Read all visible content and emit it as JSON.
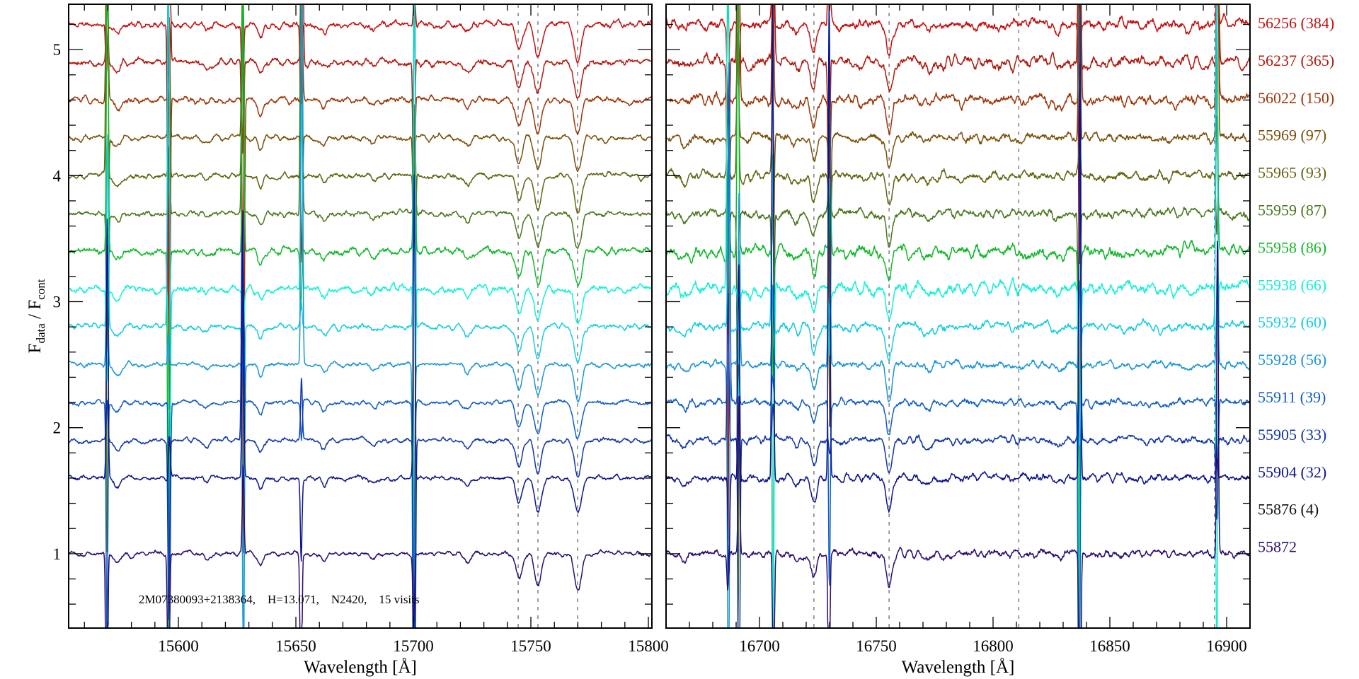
{
  "chart_data": {
    "type": "line",
    "ylabel": {
      "main1": "F",
      "sub1": "data",
      "sep": " / ",
      "main2": "F",
      "sub2": "cont"
    },
    "ylim": [
      0.41,
      5.36
    ],
    "yticks": [
      "1",
      "2",
      "3",
      "4",
      "5"
    ],
    "annotation": "2M07380093+2138364,    H=13.071,    N2420,    15 visits",
    "panels": [
      {
        "xlabel": "Wavelength [Å]",
        "xlim": [
          15553.3,
          15801.5
        ],
        "xticks": [
          "15600",
          "15650",
          "15700",
          "15750",
          "15800"
        ],
        "dashed_lines": [
          15744.6,
          15753.0,
          15769.9
        ],
        "absorption_lines": [
          {
            "wavelength": 15574,
            "depth": 0.08,
            "width": 1.5
          },
          {
            "wavelength": 15612,
            "depth": 0.04,
            "width": 1.2
          },
          {
            "wavelength": 15635,
            "depth": 0.1,
            "width": 1.0
          },
          {
            "wavelength": 15662,
            "depth": 0.06,
            "width": 1.2
          },
          {
            "wavelength": 15683,
            "depth": 0.04,
            "width": 1.2
          },
          {
            "wavelength": 15723,
            "depth": 0.07,
            "width": 1.3
          },
          {
            "wavelength": 15745,
            "depth": 0.2,
            "width": 1.3
          },
          {
            "wavelength": 15753,
            "depth": 0.26,
            "width": 1.4
          },
          {
            "wavelength": 15770,
            "depth": 0.28,
            "width": 1.5
          }
        ],
        "spikes": [
          15569.6,
          15596.0,
          15627.4,
          15652.4,
          15700.3
        ]
      },
      {
        "xlabel": "Wavelength [Å]",
        "xlim": [
          16660.0,
          16910.0
        ],
        "xticks": [
          "16700",
          "16750",
          "16800",
          "16850",
          "16900"
        ],
        "dashed_lines": [
          16723.3,
          16755.5,
          16811.0,
          16894.8
        ],
        "absorption_lines": [
          {
            "wavelength": 16668,
            "depth": 0.06,
            "width": 1.2
          },
          {
            "wavelength": 16716,
            "depth": 0.05,
            "width": 1.2
          },
          {
            "wavelength": 16723.3,
            "depth": 0.2,
            "width": 1.2
          },
          {
            "wavelength": 16755.5,
            "depth": 0.25,
            "width": 1.2
          },
          {
            "wavelength": 16772,
            "depth": 0.05,
            "width": 1.5
          },
          {
            "wavelength": 16828,
            "depth": 0.04,
            "width": 1.5
          }
        ],
        "spikes": [
          16686.7,
          16691.0,
          16705.8,
          16730.0,
          16837.0,
          16896.0
        ]
      }
    ],
    "series": [
      {
        "label": "56256 (384)",
        "mjd": 56256,
        "days": 384,
        "offset": 5.2,
        "color": "#c41010",
        "noise": 0.035,
        "plotted": true
      },
      {
        "label": "56237 (365)",
        "mjd": 56237,
        "days": 365,
        "offset": 4.9,
        "color": "#b01a10",
        "noise": 0.04,
        "plotted": true
      },
      {
        "label": "56022 (150)",
        "mjd": 56022,
        "days": 150,
        "offset": 4.6,
        "color": "#9c3608",
        "noise": 0.035,
        "plotted": true
      },
      {
        "label": "55969 (97)",
        "mjd": 55969,
        "days": 97,
        "offset": 4.3,
        "color": "#7a5008",
        "noise": 0.03,
        "plotted": true
      },
      {
        "label": "55965 (93)",
        "mjd": 55965,
        "days": 93,
        "offset": 4.0,
        "color": "#626410",
        "noise": 0.03,
        "plotted": true
      },
      {
        "label": "55959 (87)",
        "mjd": 55959,
        "days": 87,
        "offset": 3.7,
        "color": "#4a761c",
        "noise": 0.03,
        "plotted": true
      },
      {
        "label": "55958 (86)",
        "mjd": 55958,
        "days": 86,
        "offset": 3.4,
        "color": "#12b82a",
        "noise": 0.04,
        "plotted": true
      },
      {
        "label": "55938 (66)",
        "mjd": 55938,
        "days": 66,
        "offset": 3.1,
        "color": "#14f0d6",
        "noise": 0.04,
        "plotted": true
      },
      {
        "label": "55932 (60)",
        "mjd": 55932,
        "days": 60,
        "offset": 2.8,
        "color": "#14cde0",
        "noise": 0.03,
        "plotted": true
      },
      {
        "label": "55928 (56)",
        "mjd": 55928,
        "days": 56,
        "offset": 2.5,
        "color": "#1896d6",
        "noise": 0.025,
        "plotted": true
      },
      {
        "label": "55911 (39)",
        "mjd": 55911,
        "days": 39,
        "offset": 2.2,
        "color": "#105ec6",
        "noise": 0.025,
        "plotted": true
      },
      {
        "label": "55905 (33)",
        "mjd": 55905,
        "days": 33,
        "offset": 1.9,
        "color": "#1036a6",
        "noise": 0.025,
        "plotted": true
      },
      {
        "label": "55904 (32)",
        "mjd": 55904,
        "days": 32,
        "offset": 1.6,
        "color": "#0c148e",
        "noise": 0.025,
        "plotted": true
      },
      {
        "label": "55876 (4)",
        "mjd": 55876,
        "days": 4,
        "offset": 1.3,
        "color": "#111111",
        "noise": 0.025,
        "plotted": false
      },
      {
        "label": "55872",
        "mjd": 55872,
        "days": null,
        "offset": 1.0,
        "color": "#2a0c72",
        "noise": 0.025,
        "plotted": true
      }
    ]
  }
}
